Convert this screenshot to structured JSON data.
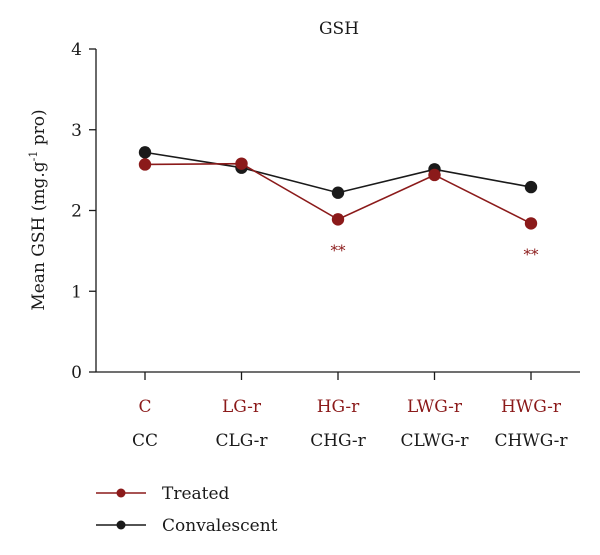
{
  "chart_data": {
    "type": "line",
    "title": "GSH",
    "ylabel_main": "Mean GSH (mg.g",
    "ylabel_sup": "-1",
    "ylabel_tail": " pro)",
    "ylim": [
      0,
      4
    ],
    "yticks": [
      "0",
      "1",
      "2",
      "3",
      "4"
    ],
    "grid": false,
    "legend_position": "bottom-left",
    "categories_treated": [
      "C",
      "LG-r",
      "HG-r",
      "LWG-r",
      "HWG-r"
    ],
    "categories_convalescent": [
      "CC",
      "CLG-r",
      "CHG-r",
      "CLWG-r",
      "CHWG-r"
    ],
    "series": [
      {
        "name": "Treated",
        "color": "#8b1a1a",
        "values": [
          2.57,
          2.58,
          1.89,
          2.44,
          1.84
        ],
        "annotations": [
          "",
          "",
          "**",
          "",
          "**"
        ]
      },
      {
        "name": "Convalescent",
        "color": "#1a1a1a",
        "values": [
          2.72,
          2.53,
          2.22,
          2.51,
          2.29
        ],
        "annotations": [
          "",
          "",
          "",
          "",
          ""
        ]
      }
    ]
  }
}
